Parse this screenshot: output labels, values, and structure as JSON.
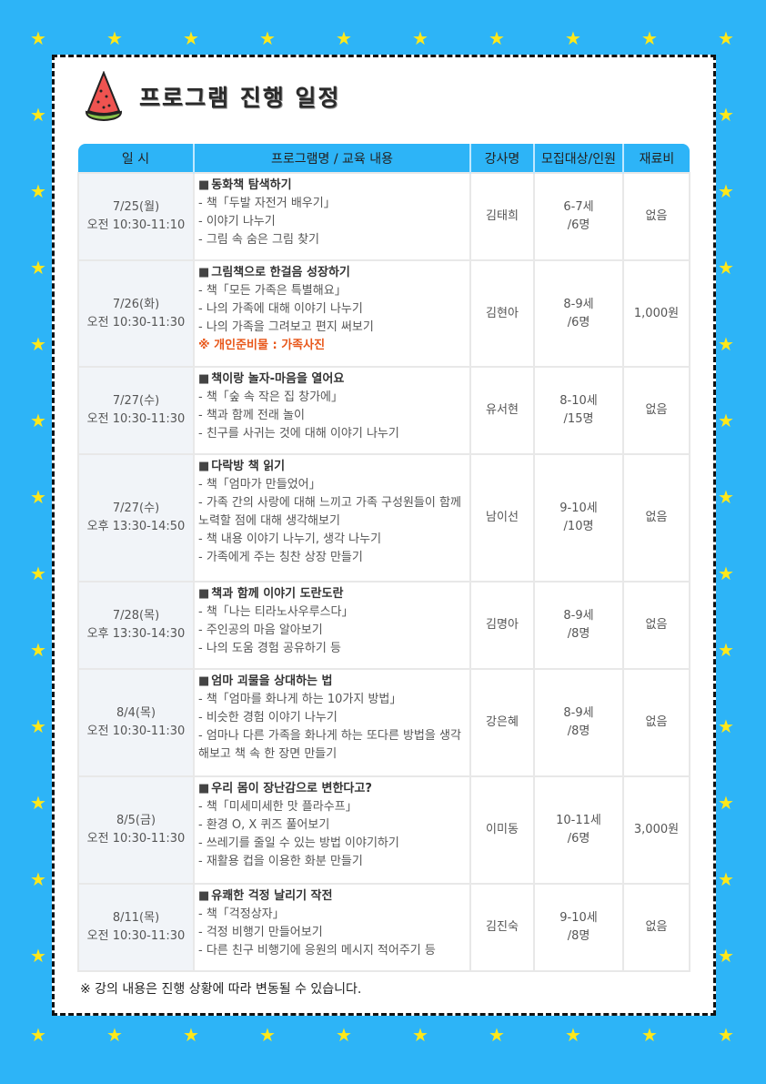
{
  "title": "프로그램 진행 일정",
  "colors": {
    "background": "#2db4f7",
    "header": "#2db4f7",
    "star": "#ffe81a",
    "note": "#e8571a"
  },
  "table": {
    "headers": [
      "일 시",
      "프로그램명 / 교육 내용",
      "강사명",
      "모집대상/인원",
      "재료비"
    ],
    "rows": [
      {
        "date": "7/25(월)",
        "time": "오전 10:30-11:10",
        "title": "동화책 탐색하기",
        "items": [
          "- 책「두발 자전거 배우기」",
          "- 이야기 나누기",
          "- 그림 속 숨은 그림 찾기"
        ],
        "note": "",
        "instructor": "김태희",
        "age": "6-7세",
        "capacity": "/6명",
        "fee": "없음"
      },
      {
        "date": "7/26(화)",
        "time": "오전 10:30-11:30",
        "title": "그림책으로 한걸음 성장하기",
        "items": [
          "- 책「모든 가족은 특별해요」",
          "- 나의 가족에 대해 이야기 나누기",
          "- 나의 가족을 그려보고 편지 써보기"
        ],
        "note": "※ 개인준비물 : 가족사진",
        "instructor": "김현아",
        "age": "8-9세",
        "capacity": "/6명",
        "fee": "1,000원"
      },
      {
        "date": "7/27(수)",
        "time": "오전 10:30-11:30",
        "title": "책이랑 놀자-마음을 열어요",
        "items": [
          "- 책「숲 속 작은 집 창가에」",
          "- 책과 함께 전래 놀이",
          "- 친구를 사귀는 것에 대해 이야기 나누기"
        ],
        "note": "",
        "instructor": "유서현",
        "age": "8-10세",
        "capacity": "/15명",
        "fee": "없음"
      },
      {
        "date": "7/27(수)",
        "time": "오후 13:30-14:50",
        "title": "다락방 책 읽기",
        "items": [
          "- 책「엄마가 만들었어」",
          "- 가족 간의 사랑에 대해 느끼고 가족 구성원들이 함께 노력할 점에 대해 생각해보기",
          "- 책 내용 이야기 나누기, 생각 나누기",
          "- 가족에게 주는 칭찬 상장 만들기"
        ],
        "note": "",
        "instructor": "남이선",
        "age": "9-10세",
        "capacity": "/10명",
        "fee": "없음"
      },
      {
        "date": "7/28(목)",
        "time": "오후 13:30-14:30",
        "title": "책과 함께 이야기 도란도란",
        "items": [
          "- 책「나는 티라노사우루스다」",
          "- 주인공의 마음 알아보기",
          "- 나의 도움 경험 공유하기 등"
        ],
        "note": "",
        "instructor": "김명아",
        "age": "8-9세",
        "capacity": "/8명",
        "fee": "없음"
      },
      {
        "date": "8/4(목)",
        "time": "오전 10:30-11:30",
        "title": "엄마 괴물을 상대하는 법",
        "items": [
          "- 책「엄마를 화나게 하는 10가지 방법」",
          "- 비슷한 경험 이야기 나누기",
          "- 엄마나 다른 가족을 화나게 하는 또다른 방법을 생각해보고 책 속 한 장면 만들기"
        ],
        "note": "",
        "instructor": "강은혜",
        "age": "8-9세",
        "capacity": "/8명",
        "fee": "없음"
      },
      {
        "date": "8/5(금)",
        "time": "오전 10:30-11:30",
        "title": "우리 몸이 장난감으로 변한다고?",
        "items": [
          "- 책「미세미세한 맛 플라수프」",
          "- 환경 O, X 퀴즈 풀어보기",
          "- 쓰레기를 줄일 수 있는 방법 이야기하기",
          "- 재활용 컵을 이용한 화분 만들기"
        ],
        "note": "",
        "instructor": "이미동",
        "age": "10-11세",
        "capacity": "/6명",
        "fee": "3,000원"
      },
      {
        "date": "8/11(목)",
        "time": "오전 10:30-11:30",
        "title": "유쾌한 걱정 날리기 작전",
        "items": [
          "- 책「걱정상자」",
          "- 걱정 비행기 만들어보기",
          "- 다른 친구 비행기에 응원의 메시지 적어주기 등"
        ],
        "note": "",
        "instructor": "김진숙",
        "age": "9-10세",
        "capacity": "/8명",
        "fee": "없음"
      }
    ]
  },
  "footnote": "※ 강의 내용은 진행 상황에 따라 변동될 수 있습니다."
}
